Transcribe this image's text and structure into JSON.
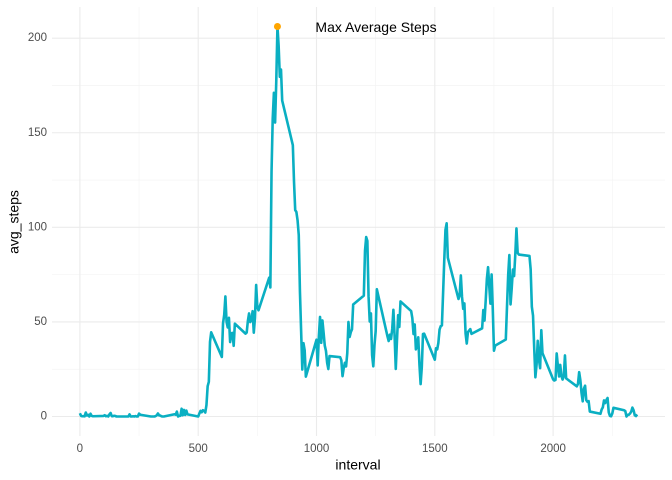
{
  "chart_data": {
    "type": "line",
    "x_label": "interval",
    "y_label": "avg_steps",
    "xlim": [
      -117.75,
      2472.75
    ],
    "ylim": [
      -10.31,
      216.48
    ],
    "xticks": [
      0,
      500,
      1000,
      1500,
      2000
    ],
    "yticks": [
      0,
      50,
      100,
      150,
      200
    ],
    "x_minor_ticks": [
      250,
      750,
      1250,
      1750,
      2250
    ],
    "y_minor_ticks": [
      25,
      75,
      125,
      175
    ],
    "grid": true,
    "x": [
      0,
      5,
      10,
      15,
      20,
      25,
      30,
      35,
      40,
      45,
      50,
      55,
      100,
      105,
      110,
      115,
      120,
      125,
      130,
      135,
      140,
      145,
      150,
      155,
      200,
      205,
      210,
      215,
      220,
      225,
      230,
      235,
      240,
      245,
      250,
      255,
      300,
      305,
      310,
      315,
      320,
      325,
      330,
      335,
      340,
      345,
      350,
      355,
      400,
      405,
      410,
      415,
      420,
      425,
      430,
      435,
      440,
      445,
      450,
      455,
      500,
      505,
      510,
      515,
      520,
      525,
      530,
      535,
      540,
      545,
      550,
      555,
      600,
      605,
      610,
      615,
      620,
      625,
      630,
      635,
      640,
      645,
      650,
      655,
      700,
      705,
      710,
      715,
      720,
      725,
      730,
      735,
      740,
      745,
      750,
      755,
      800,
      805,
      810,
      815,
      820,
      825,
      830,
      835,
      840,
      845,
      850,
      855,
      900,
      905,
      910,
      915,
      920,
      925,
      930,
      935,
      940,
      945,
      950,
      955,
      1000,
      1005,
      1010,
      1015,
      1020,
      1025,
      1030,
      1035,
      1040,
      1045,
      1050,
      1055,
      1100,
      1105,
      1110,
      1115,
      1120,
      1125,
      1130,
      1135,
      1140,
      1145,
      1150,
      1155,
      1200,
      1205,
      1210,
      1215,
      1220,
      1225,
      1230,
      1235,
      1240,
      1245,
      1250,
      1255,
      1300,
      1305,
      1310,
      1315,
      1320,
      1325,
      1330,
      1335,
      1340,
      1345,
      1350,
      1355,
      1400,
      1405,
      1410,
      1415,
      1420,
      1425,
      1430,
      1435,
      1440,
      1445,
      1450,
      1455,
      1500,
      1505,
      1510,
      1515,
      1520,
      1525,
      1530,
      1535,
      1540,
      1545,
      1550,
      1555,
      1600,
      1605,
      1610,
      1615,
      1620,
      1625,
      1630,
      1635,
      1640,
      1645,
      1650,
      1655,
      1700,
      1705,
      1710,
      1715,
      1720,
      1725,
      1730,
      1735,
      1740,
      1745,
      1750,
      1755,
      1800,
      1805,
      1810,
      1815,
      1820,
      1825,
      1830,
      1835,
      1840,
      1845,
      1850,
      1855,
      1900,
      1905,
      1910,
      1915,
      1920,
      1925,
      1930,
      1935,
      1940,
      1945,
      1950,
      1955,
      2000,
      2005,
      2010,
      2015,
      2020,
      2025,
      2030,
      2035,
      2040,
      2045,
      2050,
      2055,
      2100,
      2105,
      2110,
      2115,
      2120,
      2125,
      2130,
      2135,
      2140,
      2145,
      2150,
      2155,
      2200,
      2205,
      2210,
      2215,
      2220,
      2225,
      2230,
      2235,
      2240,
      2245,
      2250,
      2255,
      2300,
      2305,
      2310,
      2315,
      2320,
      2325,
      2330,
      2335,
      2340,
      2345,
      2350,
      2355
    ],
    "series": [
      {
        "name": "avg_steps",
        "color": "#0AAFC2",
        "values": [
          1.72,
          0.34,
          0.13,
          0.15,
          0.08,
          2.09,
          0.53,
          0.87,
          0,
          1.47,
          0.3,
          0.13,
          0.32,
          0.68,
          0.15,
          0.34,
          0,
          1.11,
          1.83,
          0.17,
          0.17,
          0.38,
          0.26,
          0,
          0,
          0,
          1.13,
          0,
          0,
          0.13,
          0,
          0.23,
          0,
          0,
          1.55,
          0.94,
          0,
          0,
          0,
          0,
          0.21,
          0.62,
          1.62,
          0.58,
          0.49,
          0.08,
          0,
          0,
          1.19,
          0.94,
          2.57,
          0,
          0.34,
          0.36,
          4.11,
          0.66,
          3.49,
          0.83,
          3.11,
          1.11,
          0,
          1.57,
          3.0,
          2.25,
          3.32,
          2.96,
          2.09,
          6.06,
          16.02,
          18.34,
          39.45,
          44.49,
          31.49,
          49.26,
          53.77,
          63.45,
          49.96,
          47.08,
          52.15,
          39.34,
          44.02,
          44.17,
          37.36,
          49.04,
          43.81,
          44.38,
          50.51,
          54.51,
          49.92,
          50.98,
          55.68,
          44.32,
          52.26,
          69.55,
          57.85,
          56.15,
          73.38,
          68.21,
          129.43,
          157.53,
          171.15,
          155.4,
          177.3,
          206.17,
          195.92,
          179.57,
          183.4,
          167.02,
          143.45,
          124.04,
          109.11,
          108.11,
          103.72,
          95.96,
          66.21,
          45.23,
          24.79,
          38.75,
          34.98,
          21.06,
          40.57,
          26.98,
          42.42,
          52.66,
          38.92,
          50.79,
          44.28,
          37.42,
          34.7,
          28.34,
          25.09,
          31.94,
          31.36,
          29.68,
          21.32,
          25.55,
          28.38,
          26.47,
          33.43,
          49.98,
          42.04,
          44.6,
          46.04,
          59.19,
          63.87,
          87.7,
          94.85,
          92.77,
          63.4,
          50.17,
          54.47,
          32.42,
          26.53,
          37.74,
          45.06,
          67.28,
          42.34,
          39.89,
          43.26,
          40.98,
          46.25,
          56.43,
          42.75,
          25.13,
          39.96,
          53.55,
          47.32,
          60.81,
          55.75,
          51.96,
          43.58,
          48.7,
          35.47,
          37.55,
          41.85,
          27.51,
          17.11,
          26.08,
          43.62,
          43.77,
          30.02,
          36.08,
          35.49,
          38.85,
          45.96,
          47.75,
          48.13,
          65.32,
          82.91,
          98.66,
          102.11,
          83.96,
          62.13,
          64.13,
          74.55,
          63.17,
          56.91,
          59.77,
          43.87,
          38.57,
          44.66,
          45.45,
          46.21,
          43.68,
          46.62,
          56.3,
          50.72,
          61.23,
          72.72,
          78.94,
          68.94,
          59.66,
          75.09,
          56.51,
          34.77,
          37.45,
          40.68,
          58.02,
          74.7,
          85.32,
          59.26,
          67.77,
          77.7,
          74.25,
          85.34,
          99.45,
          86.58,
          85.6,
          84.87,
          77.83,
          58.04,
          53.36,
          36.32,
          20.72,
          27.4,
          40.02,
          30.21,
          25.55,
          45.66,
          33.53,
          19.62,
          19.02,
          19.34,
          33.34,
          26.81,
          21.17,
          27.3,
          21.34,
          19.55,
          21.32,
          32.3,
          20.15,
          15.94,
          17.23,
          23.45,
          19.25,
          12.45,
          8.02,
          14.66,
          16.3,
          8.68,
          7.79,
          8.13,
          2.62,
          1.45,
          3.68,
          4.81,
          8.51,
          7.08,
          8.7,
          9.75,
          2.21,
          0.32,
          0.11,
          1.6,
          4.6,
          3.3,
          2.85,
          0,
          0.83,
          0.96,
          1.58,
          2.6,
          4.7,
          3.3,
          0.64,
          0.23,
          1.08
        ]
      }
    ],
    "annotation": {
      "text": "Max Average Steps",
      "x": 835,
      "y": 206.17,
      "color": "#FFA500"
    }
  }
}
